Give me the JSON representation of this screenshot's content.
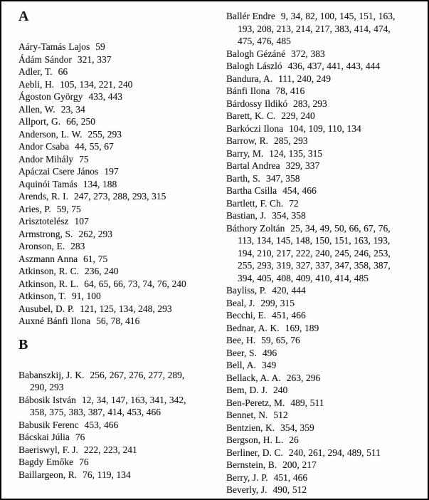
{
  "colors": {
    "text": "#1b1b1b",
    "background": "#fefefe",
    "border": "#000000"
  },
  "document": {
    "columns": [
      {
        "id": "left",
        "sections": [
          {
            "header": "A",
            "entries": [
              {
                "name": "Aáry-Tamás Lajos",
                "pages": "59"
              },
              {
                "name": "Ádám Sándor",
                "pages": "321, 337"
              },
              {
                "name": "Adler, T.",
                "pages": "66"
              },
              {
                "name": "Aebli, H.",
                "pages": "105, 134, 221, 240"
              },
              {
                "name": "Ágoston György",
                "pages": "433, 443"
              },
              {
                "name": "Allen, W.",
                "pages": "23, 34"
              },
              {
                "name": "Allport, G.",
                "pages": "66, 250"
              },
              {
                "name": "Anderson, L. W.",
                "pages": "255, 293"
              },
              {
                "name": "Andor Csaba",
                "pages": "44, 55, 67"
              },
              {
                "name": "Andor Mihály",
                "pages": "75"
              },
              {
                "name": "Apáczai Csere János",
                "pages": "197"
              },
              {
                "name": "Aquinói Tamás",
                "pages": "134, 188"
              },
              {
                "name": "Arends, R. I.",
                "pages": "247, 273, 288, 293, 315"
              },
              {
                "name": "Aries, P.",
                "pages": "59, 75"
              },
              {
                "name": "Arisztotelész",
                "pages": "107"
              },
              {
                "name": "Armstrong, S.",
                "pages": "262, 293"
              },
              {
                "name": "Aronson, E.",
                "pages": "283"
              },
              {
                "name": "Aszmann Anna",
                "pages": "61, 75"
              },
              {
                "name": "Atkinson, R. C.",
                "pages": "236, 240"
              },
              {
                "name": "Atkinson, R. L.",
                "pages": "64, 65, 66, 73, 74, 76, 240"
              },
              {
                "name": "Atkinson, T.",
                "pages": "91, 100"
              },
              {
                "name": "Ausubel, D. P.",
                "pages": "121, 125, 134, 248, 293"
              },
              {
                "name": "Auxné Bánfi Ilona",
                "pages": "56, 78, 416"
              }
            ]
          },
          {
            "header": "B",
            "entries": [
              {
                "name": "Babanszkij, J. K.",
                "pages": "256, 267, 276, 277, 289, 290, 293"
              },
              {
                "name": "Bábosik István",
                "pages": "12, 34, 147, 163, 341, 342, 358, 375, 383, 387, 414, 453, 466"
              },
              {
                "name": "Babusik Ferenc",
                "pages": "453, 466"
              },
              {
                "name": "Bácskai Júlia",
                "pages": "76"
              },
              {
                "name": "Baeriswyl, F. J.",
                "pages": "222, 223, 241"
              },
              {
                "name": "Bagdy Emőke",
                "pages": "76"
              },
              {
                "name": "Baillargeon, R.",
                "pages": "76, 119, 134"
              }
            ]
          }
        ]
      },
      {
        "id": "right",
        "sections": [
          {
            "header": "",
            "entries": [
              {
                "name": "Ballér Endre",
                "pages": "9, 34, 82, 100, 145, 151, 163, 193, 208, 213, 214, 217, 383, 414, 474, 475, 476, 485"
              },
              {
                "name": "Balogh Gézáné",
                "pages": "372, 383"
              },
              {
                "name": "Balogh László",
                "pages": "436, 437, 441, 443, 444"
              },
              {
                "name": "Bandura, A.",
                "pages": "111, 240, 249"
              },
              {
                "name": "Bánfi Ilona",
                "pages": "78, 416"
              },
              {
                "name": "Bárdossy Ildikó",
                "pages": "283, 293"
              },
              {
                "name": "Barett, K. C.",
                "pages": "229, 240"
              },
              {
                "name": "Barkóczi Ilona",
                "pages": "104, 109, 110, 134"
              },
              {
                "name": "Barrow, R.",
                "pages": "285, 293"
              },
              {
                "name": "Barry, M.",
                "pages": "124, 135, 315"
              },
              {
                "name": "Bartal Andrea",
                "pages": "329, 337"
              },
              {
                "name": "Barth, S.",
                "pages": "347, 358"
              },
              {
                "name": "Bartha Csilla",
                "pages": "454, 466"
              },
              {
                "name": "Bartlett, F. Ch.",
                "pages": "72"
              },
              {
                "name": "Bastian, J.",
                "pages": "354, 358"
              },
              {
                "name": "Báthory Zoltán",
                "pages": "25, 34, 49, 50, 66, 67, 76, 113, 134, 145, 148, 150, 151, 163, 193, 194, 210, 217, 222, 240, 245, 246, 253, 255, 293, 319, 327, 337, 347, 358, 387, 394, 405, 408, 409, 410, 414, 485"
              },
              {
                "name": "Bayliss, P.",
                "pages": "420, 444"
              },
              {
                "name": "Beal, J.",
                "pages": "299, 315"
              },
              {
                "name": "Becchi, E.",
                "pages": "451, 466"
              },
              {
                "name": "Bednar, A. K.",
                "pages": "169, 189"
              },
              {
                "name": "Bee, H.",
                "pages": "59, 65, 76"
              },
              {
                "name": "Beer, S.",
                "pages": "496"
              },
              {
                "name": "Bell, A.",
                "pages": "349"
              },
              {
                "name": "Bellack, A. A.",
                "pages": "263, 296"
              },
              {
                "name": "Bem, D. J.",
                "pages": "240"
              },
              {
                "name": "Ben-Peretz, M.",
                "pages": "489, 511"
              },
              {
                "name": "Bennet, N.",
                "pages": "512"
              },
              {
                "name": "Bentzien, K.",
                "pages": "354, 359"
              },
              {
                "name": "Bergson, H. L.",
                "pages": "26"
              },
              {
                "name": "Berliner, D. C.",
                "pages": "240, 261, 294, 489, 511"
              },
              {
                "name": "Bernstein, B.",
                "pages": "200, 217"
              },
              {
                "name": "Berry, J. P.",
                "pages": "451, 466"
              },
              {
                "name": "Beverly, J.",
                "pages": "490, 512"
              }
            ]
          }
        ]
      }
    ]
  }
}
